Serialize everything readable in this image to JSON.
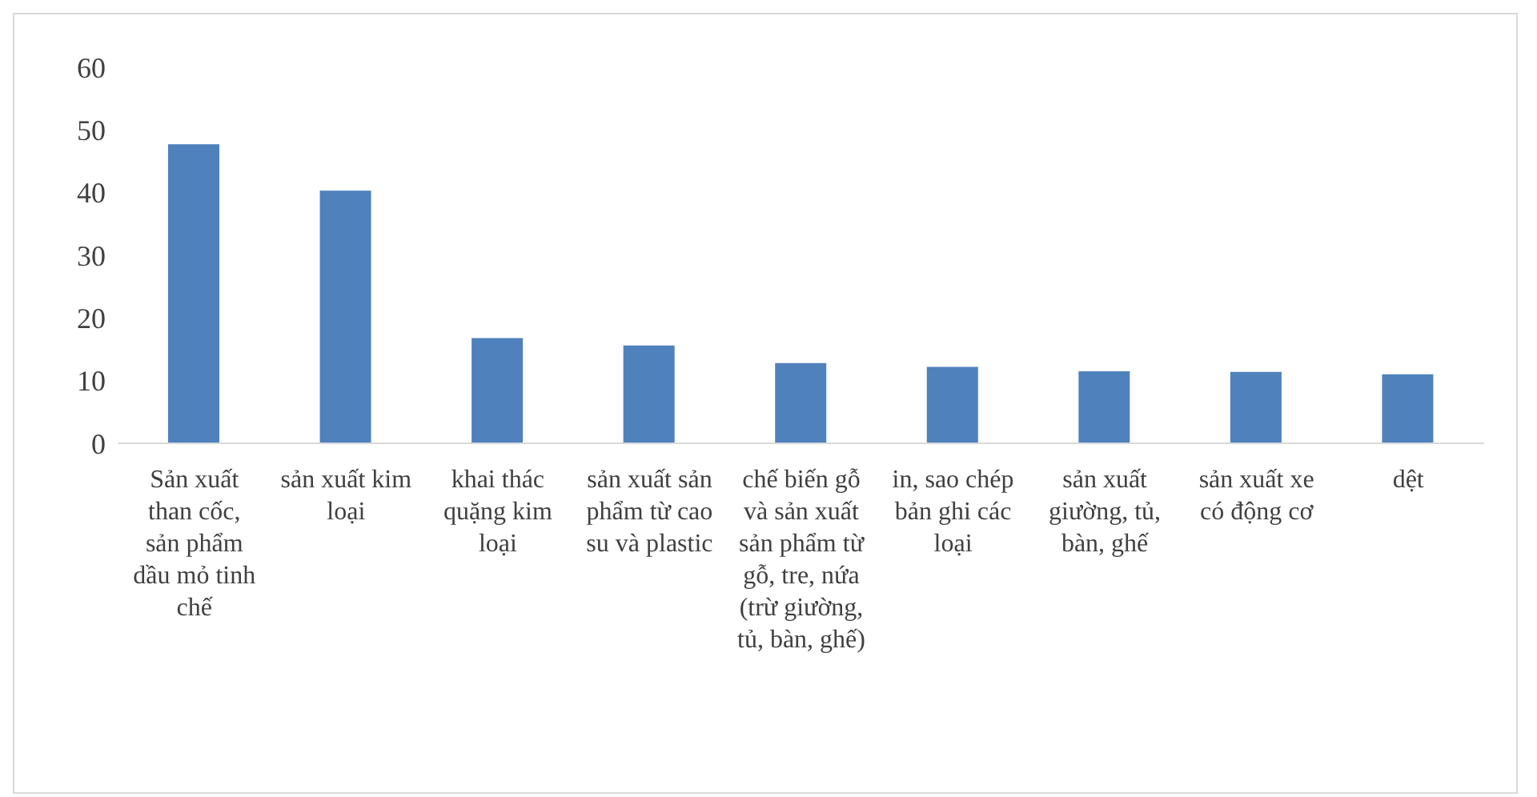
{
  "chart_data": {
    "type": "bar",
    "categories": [
      "Sản xuất than cốc, sản phẩm dầu mỏ tinh chế",
      "sản xuất kim loại",
      "khai thác quặng kim loại",
      "sản xuất sản phẩm từ cao su và plastic",
      "chế biến gỗ và sản xuất sản phẩm từ gỗ, tre, nứa (trừ giường, tủ, bàn, ghế)",
      "in, sao chép bản ghi các loại",
      "sản xuất giường, tủ, bàn, ghế",
      "sản xuất xe có động cơ",
      "dệt"
    ],
    "values": [
      47.7,
      40.3,
      16.8,
      15.6,
      12.8,
      12.2,
      11.5,
      11.4,
      11.0
    ],
    "color": "#4f81bd",
    "ylim": [
      0,
      60
    ],
    "yticks": [
      0,
      10,
      20,
      30,
      40,
      50,
      60
    ],
    "grid": false,
    "legend": false
  }
}
